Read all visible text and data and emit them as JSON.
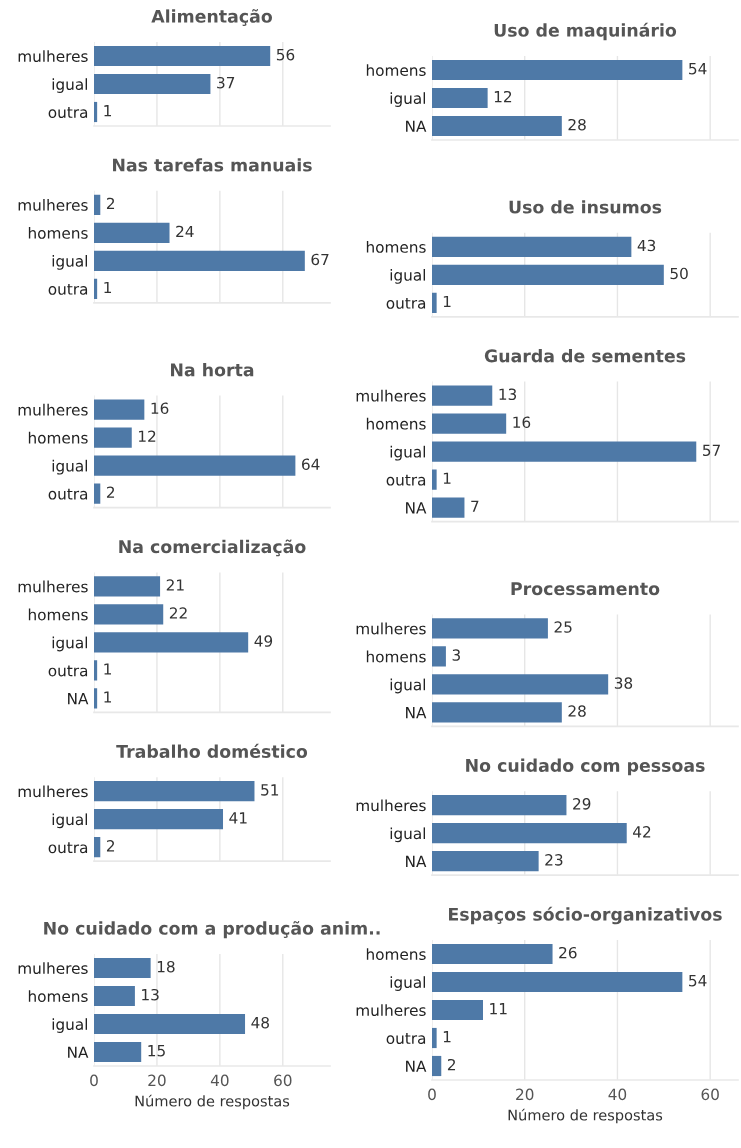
{
  "chart_data": [
    {
      "type": "bar",
      "orientation": "horizontal",
      "title": "Alimentação",
      "categories": [
        "mulheres",
        "igual",
        "outra"
      ],
      "values": [
        56,
        37,
        1
      ],
      "color": "#4e79a7",
      "xlim": [
        0,
        75
      ],
      "xticks": [
        0,
        20,
        40,
        60
      ],
      "grid": "x",
      "tick_labels": "y",
      "data_labels": true
    },
    {
      "type": "bar",
      "orientation": "horizontal",
      "title": "Uso de maquinário",
      "categories": [
        "homens",
        "igual",
        "NA"
      ],
      "values": [
        54,
        12,
        28
      ],
      "color": "#4e79a7",
      "xlim": [
        0,
        66
      ],
      "xticks": [
        0,
        20,
        40,
        60
      ],
      "grid": "x",
      "tick_labels": "y",
      "data_labels": true
    },
    {
      "type": "bar",
      "orientation": "horizontal",
      "title": "Nas tarefas manuais",
      "categories": [
        "mulheres",
        "homens",
        "igual",
        "outra"
      ],
      "values": [
        2,
        24,
        67,
        1
      ],
      "color": "#4e79a7",
      "xlim": [
        0,
        75
      ],
      "xticks": [
        0,
        20,
        40,
        60
      ],
      "grid": "x",
      "tick_labels": "y",
      "data_labels": true
    },
    {
      "type": "bar",
      "orientation": "horizontal",
      "title": "Uso de insumos",
      "categories": [
        "homens",
        "igual",
        "outra"
      ],
      "values": [
        43,
        50,
        1
      ],
      "color": "#4e79a7",
      "xlim": [
        0,
        66
      ],
      "xticks": [
        0,
        20,
        40,
        60
      ],
      "grid": "x",
      "tick_labels": "y",
      "data_labels": true
    },
    {
      "type": "bar",
      "orientation": "horizontal",
      "title": "Na horta",
      "categories": [
        "mulheres",
        "homens",
        "igual",
        "outra"
      ],
      "values": [
        16,
        12,
        64,
        2
      ],
      "color": "#4e79a7",
      "xlim": [
        0,
        75
      ],
      "xticks": [
        0,
        20,
        40,
        60
      ],
      "grid": "x",
      "tick_labels": "y",
      "data_labels": true
    },
    {
      "type": "bar",
      "orientation": "horizontal",
      "title": "Guarda de sementes",
      "categories": [
        "mulheres",
        "homens",
        "igual",
        "outra",
        "NA"
      ],
      "values": [
        13,
        16,
        57,
        1,
        7
      ],
      "color": "#4e79a7",
      "xlim": [
        0,
        66
      ],
      "xticks": [
        0,
        20,
        40,
        60
      ],
      "grid": "x",
      "tick_labels": "y",
      "data_labels": true
    },
    {
      "type": "bar",
      "orientation": "horizontal",
      "title": "Na comercialização",
      "categories": [
        "mulheres",
        "homens",
        "igual",
        "outra",
        "NA"
      ],
      "values": [
        21,
        22,
        49,
        1,
        1
      ],
      "color": "#4e79a7",
      "xlim": [
        0,
        75
      ],
      "xticks": [
        0,
        20,
        40,
        60
      ],
      "grid": "x",
      "tick_labels": "y",
      "data_labels": true
    },
    {
      "type": "bar",
      "orientation": "horizontal",
      "title": "Processamento",
      "categories": [
        "mulheres",
        "homens",
        "igual",
        "NA"
      ],
      "values": [
        25,
        3,
        38,
        28
      ],
      "color": "#4e79a7",
      "xlim": [
        0,
        66
      ],
      "xticks": [
        0,
        20,
        40,
        60
      ],
      "grid": "x",
      "tick_labels": "y",
      "data_labels": true
    },
    {
      "type": "bar",
      "orientation": "horizontal",
      "title": "Trabalho doméstico",
      "categories": [
        "mulheres",
        "igual",
        "outra"
      ],
      "values": [
        51,
        41,
        2
      ],
      "color": "#4e79a7",
      "xlim": [
        0,
        75
      ],
      "xticks": [
        0,
        20,
        40,
        60
      ],
      "grid": "x",
      "tick_labels": "y",
      "data_labels": true
    },
    {
      "type": "bar",
      "orientation": "horizontal",
      "title": "No cuidado com pessoas",
      "categories": [
        "mulheres",
        "igual",
        "NA"
      ],
      "values": [
        29,
        42,
        23
      ],
      "color": "#4e79a7",
      "xlim": [
        0,
        66
      ],
      "xticks": [
        0,
        20,
        40,
        60
      ],
      "grid": "x",
      "tick_labels": "y",
      "data_labels": true
    },
    {
      "type": "bar",
      "orientation": "horizontal",
      "title": "No cuidado com a produção anim..",
      "categories": [
        "mulheres",
        "homens",
        "igual",
        "NA"
      ],
      "values": [
        18,
        13,
        48,
        15
      ],
      "color": "#4e79a7",
      "xlim": [
        0,
        75
      ],
      "xticks": [
        0,
        20,
        40,
        60
      ],
      "grid": "x",
      "xlabel": "Número de respostas",
      "data_labels": true
    },
    {
      "type": "bar",
      "orientation": "horizontal",
      "title": "Espaços sócio-organizativos",
      "categories": [
        "homens",
        "igual",
        "mulheres",
        "outra",
        "NA"
      ],
      "values": [
        26,
        54,
        11,
        1,
        2
      ],
      "color": "#4e79a7",
      "xlim": [
        0,
        66
      ],
      "xticks": [
        0,
        20,
        40,
        60
      ],
      "grid": "x",
      "xlabel": "Número de respostas",
      "data_labels": true
    }
  ]
}
